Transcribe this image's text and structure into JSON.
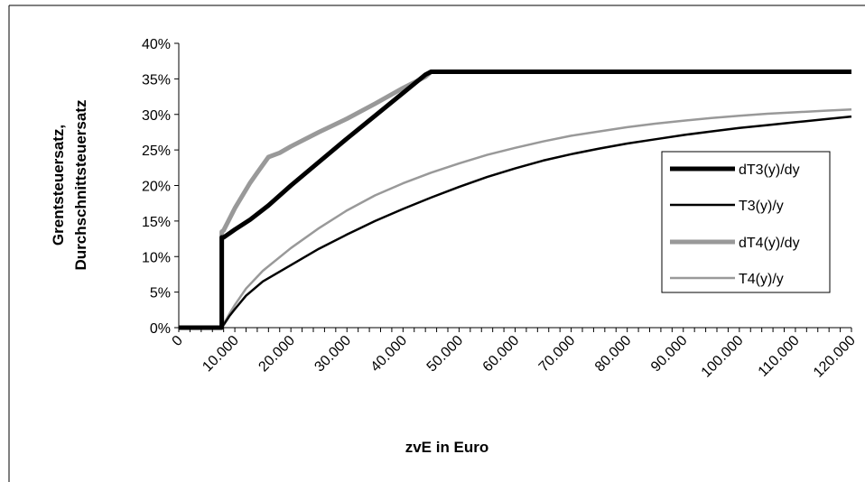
{
  "chart_data": {
    "type": "line",
    "title": "",
    "xlabel": "zvE in Euro",
    "ylabel_lines": [
      "Grentsteuersatz,",
      "Durchschnittsteuersatz"
    ],
    "xlim": [
      0,
      120000
    ],
    "ylim": [
      0,
      0.4
    ],
    "x_ticks": [
      0,
      10000,
      20000,
      30000,
      40000,
      50000,
      60000,
      70000,
      80000,
      90000,
      100000,
      110000,
      120000
    ],
    "x_tick_labels": [
      "0",
      "10.000",
      "20.000",
      "30.000",
      "40.000",
      "50.000",
      "60.000",
      "70.000",
      "80.000",
      "90.000",
      "100.000",
      "110.000",
      "120.000"
    ],
    "y_ticks": [
      0,
      0.05,
      0.1,
      0.15,
      0.2,
      0.25,
      0.3,
      0.35,
      0.4
    ],
    "y_tick_labels": [
      "0%",
      "5%",
      "10%",
      "15%",
      "20%",
      "25%",
      "30%",
      "35%",
      "40%"
    ],
    "grid": false,
    "legend_position": "right",
    "series": [
      {
        "name": "dT3(y)/dy",
        "color": "#000000",
        "stroke": "thick",
        "x": [
          0,
          7664,
          7665,
          8000,
          10000,
          12739,
          16000,
          20000,
          25000,
          30000,
          35000,
          40000,
          44000,
          45000,
          46000,
          52151,
          60000,
          70000,
          80000,
          90000,
          100000,
          110000,
          120000
        ],
        "y": [
          0,
          0,
          0.127,
          0.127,
          0.138,
          0.152,
          0.172,
          0.2,
          0.233,
          0.266,
          0.298,
          0.33,
          0.356,
          0.36,
          0.36,
          0.36,
          0.36,
          0.36,
          0.36,
          0.36,
          0.36,
          0.36,
          0.36
        ]
      },
      {
        "name": "T3(y)/y",
        "color": "#000000",
        "stroke": "thin",
        "x": [
          0,
          7664,
          8000,
          9000,
          10000,
          12000,
          15000,
          20000,
          25000,
          30000,
          35000,
          40000,
          45000,
          50000,
          55000,
          60000,
          65000,
          70000,
          75000,
          80000,
          85000,
          90000,
          95000,
          100000,
          105000,
          110000,
          115000,
          120000
        ],
        "y": [
          0,
          0,
          0.004,
          0.016,
          0.026,
          0.045,
          0.065,
          0.088,
          0.111,
          0.131,
          0.15,
          0.167,
          0.183,
          0.198,
          0.212,
          0.224,
          0.235,
          0.244,
          0.252,
          0.259,
          0.265,
          0.271,
          0.276,
          0.281,
          0.285,
          0.289,
          0.293,
          0.297
        ]
      },
      {
        "name": "dT4(y)/dy",
        "color": "#999999",
        "stroke": "thick",
        "x": [
          0,
          7664,
          7665,
          8000,
          10000,
          12739,
          14000,
          16000,
          18000,
          20000,
          25000,
          30000,
          35000,
          40000,
          44000,
          45000,
          46000,
          60000,
          80000,
          100000,
          120000
        ],
        "y": [
          0,
          0,
          0.135,
          0.137,
          0.168,
          0.204,
          0.218,
          0.24,
          0.246,
          0.255,
          0.275,
          0.294,
          0.315,
          0.337,
          0.353,
          0.36,
          0.36,
          0.36,
          0.36,
          0.36,
          0.36
        ]
      },
      {
        "name": "T4(y)/y",
        "color": "#999999",
        "stroke": "thin",
        "x": [
          0,
          7664,
          8000,
          9000,
          10000,
          12000,
          15000,
          20000,
          25000,
          30000,
          35000,
          40000,
          45000,
          50000,
          55000,
          60000,
          65000,
          70000,
          75000,
          80000,
          85000,
          90000,
          95000,
          100000,
          105000,
          110000,
          115000,
          120000
        ],
        "y": [
          0,
          0,
          0.005,
          0.019,
          0.032,
          0.055,
          0.08,
          0.112,
          0.14,
          0.165,
          0.186,
          0.203,
          0.218,
          0.231,
          0.243,
          0.253,
          0.262,
          0.27,
          0.276,
          0.282,
          0.287,
          0.291,
          0.295,
          0.298,
          0.301,
          0.303,
          0.305,
          0.307
        ]
      }
    ]
  }
}
